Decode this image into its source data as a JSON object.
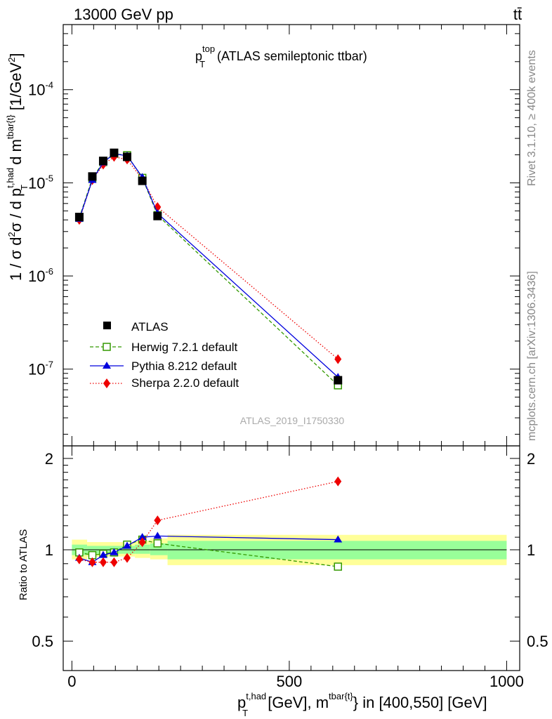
{
  "header": {
    "energy_label": "13000 GeV pp",
    "process_label": "tt̄"
  },
  "side_labels": {
    "rivet": "Rivet 3.1.10, ≥ 400k events",
    "mcplots": "mcplots.cern.ch [arXiv:1306.3436]"
  },
  "main_title": {
    "base": "p",
    "sup": "top",
    "sub": "T",
    "rest": " (ATLAS semileptonic ttbar)"
  },
  "y_label_main": {
    "part1": "1 / σ d",
    "sup1": "2",
    "part2": "σ /  d p",
    "sup2": "t,had",
    "sub2": "T",
    "part3": " d m",
    "sup3": "tbar{t}",
    "part4": " [1/GeV",
    "sup4": "2",
    "part5": "]"
  },
  "y_label_ratio": "Ratio to ATLAS",
  "x_label": {
    "base": "p",
    "sup1": "t,had",
    "sub1": "T",
    "part2": " [GeV], m",
    "sup2": "tbar{t}",
    "part3": "} in [400,550] [GeV]"
  },
  "analysis_id": "ATLAS_2019_I1750330",
  "colors": {
    "data": "#000000",
    "herwig": "#339900",
    "pythia": "#0000dd",
    "sherpa": "#ee0000",
    "band_inner": "#99ff99",
    "band_outer": "#ffff99"
  },
  "chart_data": [
    {
      "type": "line",
      "panel": "main",
      "yscale": "log",
      "title": "p_T^top (ATLAS semileptonic ttbar)",
      "xlabel": "p_T^{t,had} [GeV], m^{tbar{t}} in [400,550] [GeV]",
      "ylabel": "1 / σ d²σ / d p_T^{t,had} d m^{tbar{t}} [1/GeV²]",
      "xlim": [
        -20,
        1030
      ],
      "ylim": [
        1.5e-08,
        0.0005
      ],
      "y_tick_labels": [
        "10^{-7}",
        "10^{-6}",
        "10^{-5}",
        "10^{-4}"
      ],
      "y_tick_values": [
        1e-07,
        1e-06,
        1e-05,
        0.0001
      ],
      "series": [
        {
          "name": "ATLAS",
          "style": "square-filled",
          "x": [
            17,
            47,
            72,
            97,
            127,
            162,
            197,
            612
          ],
          "y": [
            4.3e-06,
            1.17e-05,
            1.72e-05,
            2.1e-05,
            1.9e-05,
            1.05e-05,
            4.4e-06,
            7.6e-08
          ]
        },
        {
          "name": "Herwig 7.2.1 default",
          "style": "square-open-dashed",
          "x": [
            17,
            47,
            72,
            97,
            127,
            162,
            197,
            612
          ],
          "y": [
            4.2e-06,
            1.12e-05,
            1.67e-05,
            2.05e-05,
            1.98e-05,
            1.13e-05,
            4.5e-06,
            6.7e-08
          ]
        },
        {
          "name": "Pythia 8.212 default",
          "style": "triangle-solid",
          "x": [
            17,
            47,
            72,
            97,
            127,
            162,
            197,
            612
          ],
          "y": [
            4.1e-06,
            1.07e-05,
            1.65e-05,
            2.05e-05,
            1.95e-05,
            1.15e-05,
            4.7e-06,
            8.2e-08
          ]
        },
        {
          "name": "Sherpa 2.2.0 default",
          "style": "diamond-dotted",
          "x": [
            17,
            47,
            72,
            97,
            127,
            162,
            197,
            612
          ],
          "y": [
            4e-06,
            1.07e-05,
            1.57e-05,
            1.9e-05,
            1.78e-05,
            1.1e-05,
            5.5e-06,
            1.28e-07
          ]
        }
      ],
      "legend": [
        "ATLAS",
        "Herwig 7.2.1 default",
        "Pythia 8.212 default",
        "Sherpa 2.2.0 default"
      ]
    },
    {
      "type": "line",
      "panel": "ratio",
      "ylabel": "Ratio to ATLAS",
      "xlim": [
        -20,
        1030
      ],
      "ylim": [
        0.4,
        2.2
      ],
      "y_tick_labels": [
        "0.5",
        "1",
        "2"
      ],
      "y_tick_values": [
        0.5,
        1,
        2
      ],
      "x_tick_labels": [
        "0",
        "500",
        "1000"
      ],
      "x_tick_values": [
        0,
        500,
        1000
      ],
      "bands": {
        "bin_edges": [
          0,
          35,
          60,
          85,
          110,
          145,
          180,
          220,
          1000
        ],
        "inner_lo": [
          0.96,
          0.97,
          0.97,
          0.97,
          0.97,
          0.97,
          0.96,
          0.93
        ],
        "inner_hi": [
          1.04,
          1.03,
          1.03,
          1.03,
          1.03,
          1.04,
          1.05,
          1.07
        ],
        "outer_lo": [
          0.93,
          0.95,
          0.95,
          0.95,
          0.95,
          0.94,
          0.93,
          0.89
        ],
        "outer_hi": [
          1.08,
          1.06,
          1.06,
          1.06,
          1.06,
          1.07,
          1.09,
          1.12
        ]
      },
      "series": [
        {
          "name": "Herwig 7.2.1 default",
          "x": [
            17,
            47,
            72,
            97,
            127,
            162,
            197,
            612
          ],
          "y": [
            0.98,
            0.96,
            0.97,
            0.98,
            1.04,
            1.08,
            1.05,
            0.88
          ]
        },
        {
          "name": "Pythia 8.212 default",
          "x": [
            17,
            47,
            72,
            97,
            127,
            162,
            197,
            612
          ],
          "y": [
            0.94,
            0.91,
            0.96,
            0.98,
            1.03,
            1.1,
            1.11,
            1.08
          ]
        },
        {
          "name": "Sherpa 2.2.0 default",
          "x": [
            17,
            47,
            72,
            97,
            127,
            162,
            197,
            612
          ],
          "y": [
            0.93,
            0.91,
            0.91,
            0.91,
            0.94,
            1.06,
            1.25,
            1.68
          ]
        }
      ]
    }
  ]
}
